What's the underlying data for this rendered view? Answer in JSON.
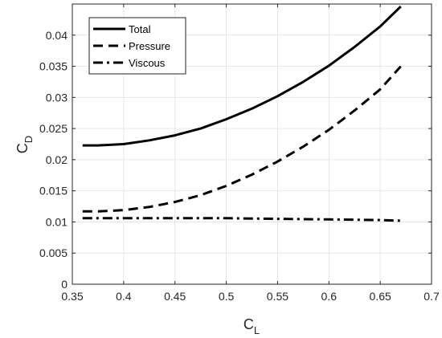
{
  "chart_data": {
    "type": "line",
    "xlabel": {
      "main": "C",
      "sub": "L"
    },
    "ylabel": {
      "main": "C",
      "sub": "D"
    },
    "xlim": [
      0.35,
      0.7
    ],
    "ylim": [
      0,
      0.045
    ],
    "x_ticks": [
      0.35,
      0.4,
      0.45,
      0.5,
      0.55,
      0.6,
      0.65,
      0.7
    ],
    "x_tick_labels": [
      "0.35",
      "0.4",
      "0.45",
      "0.5",
      "0.55",
      "0.6",
      "0.65",
      "0.7"
    ],
    "y_ticks": [
      0,
      0.005,
      0.01,
      0.015,
      0.02,
      0.025,
      0.03,
      0.035,
      0.04
    ],
    "y_tick_labels": [
      "0",
      "0.005",
      "0.01",
      "0.015",
      "0.02",
      "0.025",
      "0.03",
      "0.035",
      "0.04"
    ],
    "grid": true,
    "legend_position": "top-left",
    "series": [
      {
        "name": "Total",
        "line_style": "solid",
        "color": "#000000",
        "x": [
          0.36,
          0.375,
          0.4,
          0.425,
          0.45,
          0.475,
          0.5,
          0.525,
          0.55,
          0.575,
          0.6,
          0.625,
          0.65,
          0.67
        ],
        "y": [
          0.0223,
          0.0223,
          0.0225,
          0.0231,
          0.0239,
          0.025,
          0.0265,
          0.0282,
          0.0302,
          0.0325,
          0.0351,
          0.0381,
          0.0414,
          0.0446
        ]
      },
      {
        "name": "Pressure",
        "line_style": "dashed",
        "color": "#000000",
        "x": [
          0.36,
          0.375,
          0.4,
          0.425,
          0.45,
          0.475,
          0.5,
          0.525,
          0.55,
          0.575,
          0.6,
          0.625,
          0.65,
          0.67
        ],
        "y": [
          0.0117,
          0.0117,
          0.0119,
          0.0124,
          0.0132,
          0.0143,
          0.0158,
          0.0176,
          0.0197,
          0.0221,
          0.0248,
          0.0279,
          0.0313,
          0.035
        ]
      },
      {
        "name": "Viscous",
        "line_style": "dash-dot",
        "color": "#000000",
        "x": [
          0.36,
          0.4,
          0.45,
          0.5,
          0.55,
          0.6,
          0.65,
          0.67
        ],
        "y": [
          0.0106,
          0.0106,
          0.0106,
          0.0106,
          0.0105,
          0.0104,
          0.0103,
          0.0102
        ]
      }
    ]
  }
}
